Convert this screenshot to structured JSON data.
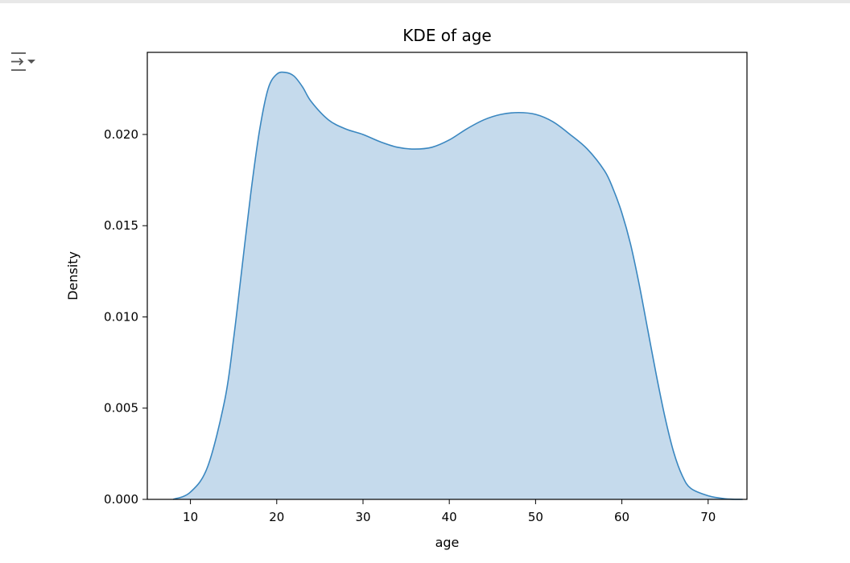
{
  "output": {
    "toggle_icon": "collapse-output-icon"
  },
  "chart_data": {
    "type": "area",
    "title": "KDE of age",
    "xlabel": "age",
    "ylabel": "Density",
    "xlim": [
      5,
      74.5
    ],
    "ylim": [
      0,
      0.0245
    ],
    "xticks": [
      10,
      20,
      30,
      40,
      50,
      60,
      70
    ],
    "xtick_labels": [
      "10",
      "20",
      "30",
      "40",
      "50",
      "60",
      "70"
    ],
    "yticks": [
      0.0,
      0.005,
      0.01,
      0.015,
      0.02
    ],
    "ytick_labels": [
      "0.000",
      "0.005",
      "0.010",
      "0.015",
      "0.020"
    ],
    "grid": false,
    "series": [
      {
        "color": "#3a87c0",
        "fill_color": "#c5daec",
        "x": [
          8,
          10,
          12,
          14,
          15,
          16,
          17,
          18,
          19,
          20,
          21,
          22,
          23,
          24,
          26,
          28,
          30,
          32,
          34,
          36,
          38,
          40,
          42,
          44,
          46,
          48,
          50,
          52,
          54,
          56,
          58,
          59,
          60,
          61,
          62,
          63,
          64,
          65,
          66,
          67,
          68,
          70,
          72,
          74
        ],
        "y": [
          0.0,
          0.0004,
          0.0018,
          0.0055,
          0.0088,
          0.0128,
          0.0168,
          0.0202,
          0.0225,
          0.0233,
          0.0234,
          0.0232,
          0.0226,
          0.0218,
          0.0208,
          0.0203,
          0.02,
          0.0196,
          0.0193,
          0.0192,
          0.0193,
          0.0197,
          0.0203,
          0.0208,
          0.0211,
          0.0212,
          0.0211,
          0.0207,
          0.02,
          0.0192,
          0.018,
          0.017,
          0.0157,
          0.014,
          0.0118,
          0.0093,
          0.0068,
          0.0045,
          0.0026,
          0.0013,
          0.0006,
          0.0002,
          3e-05,
          0.0
        ]
      }
    ]
  }
}
